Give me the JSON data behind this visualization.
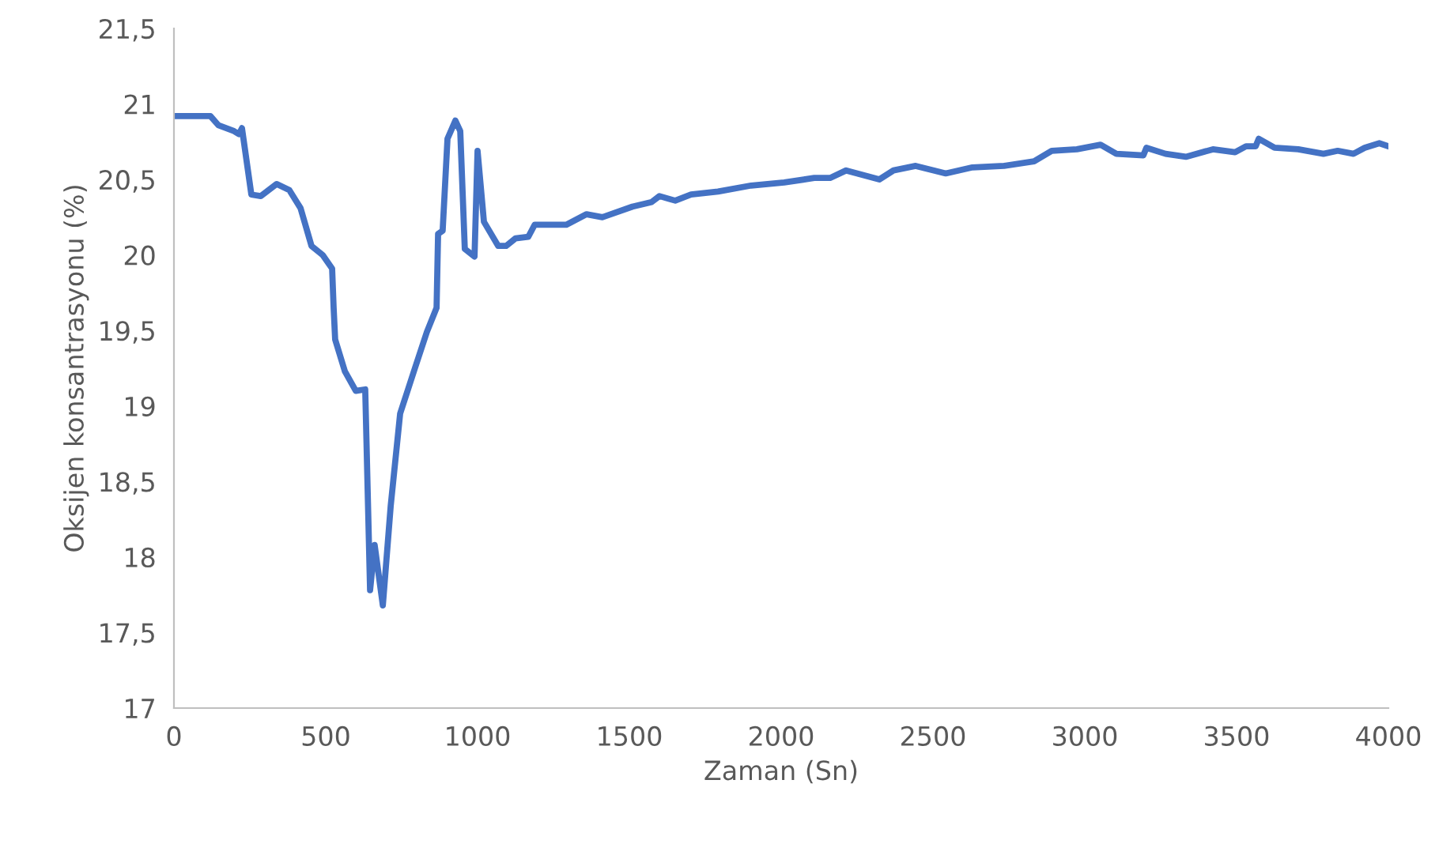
{
  "chart_data": {
    "type": "line",
    "xlabel": "Zaman (Sn)",
    "ylabel": "Oksijen konsantrasyonu (%)",
    "x": [
      0,
      120,
      146,
      198,
      214,
      224,
      255,
      286,
      338,
      380,
      417,
      453,
      490,
      521,
      526,
      531,
      563,
      599,
      630,
      646,
      661,
      688,
      714,
      745,
      792,
      833,
      865,
      870,
      885,
      901,
      927,
      943,
      958,
      990,
      1000,
      1021,
      1068,
      1094,
      1125,
      1167,
      1188,
      1292,
      1359,
      1411,
      1510,
      1573,
      1599,
      1651,
      1703,
      1792,
      1901,
      2010,
      2109,
      2161,
      2214,
      2323,
      2370,
      2443,
      2542,
      2630,
      2734,
      2833,
      2891,
      2974,
      3052,
      3104,
      3193,
      3203,
      3266,
      3333,
      3422,
      3495,
      3531,
      3563,
      3573,
      3625,
      3703,
      3786,
      3833,
      3885,
      3922,
      3970,
      4000
    ],
    "series": [
      {
        "color": "#4472c4",
        "values": [
          20.92,
          20.92,
          20.86,
          20.82,
          20.8,
          20.84,
          20.4,
          20.39,
          20.47,
          20.43,
          20.31,
          20.06,
          20.0,
          19.91,
          19.65,
          19.44,
          19.23,
          19.1,
          19.11,
          17.78,
          18.08,
          17.68,
          18.34,
          18.95,
          19.24,
          19.49,
          19.65,
          20.14,
          20.16,
          20.77,
          20.89,
          20.82,
          20.04,
          19.99,
          20.69,
          20.22,
          20.06,
          20.06,
          20.11,
          20.12,
          20.2,
          20.2,
          20.27,
          20.25,
          20.32,
          20.35,
          20.39,
          20.36,
          20.4,
          20.42,
          20.46,
          20.48,
          20.51,
          20.51,
          20.56,
          20.5,
          20.56,
          20.59,
          20.54,
          20.58,
          20.59,
          20.62,
          20.69,
          20.7,
          20.73,
          20.67,
          20.66,
          20.71,
          20.67,
          20.65,
          20.7,
          20.68,
          20.72,
          20.72,
          20.77,
          20.71,
          20.7,
          20.67,
          20.69,
          20.67,
          20.71,
          20.74,
          20.72
        ]
      }
    ],
    "xlim": [
      0,
      4000
    ],
    "xticks": [
      0,
      500,
      1000,
      1500,
      2000,
      2500,
      3000,
      3500,
      4000
    ],
    "ylim": [
      17,
      21.5
    ],
    "yticks": [
      17,
      {
        "value": 17.5,
        "label": "17,5"
      },
      18,
      {
        "value": 18.5,
        "label": "18,5"
      },
      19,
      {
        "value": 19.5,
        "label": "19,5"
      },
      20,
      {
        "value": 20.5,
        "label": "20,5"
      },
      21,
      {
        "value": 21.5,
        "label": "21,5"
      }
    ],
    "grid": false,
    "legend": false,
    "marker": "none",
    "line_style": "solid"
  }
}
